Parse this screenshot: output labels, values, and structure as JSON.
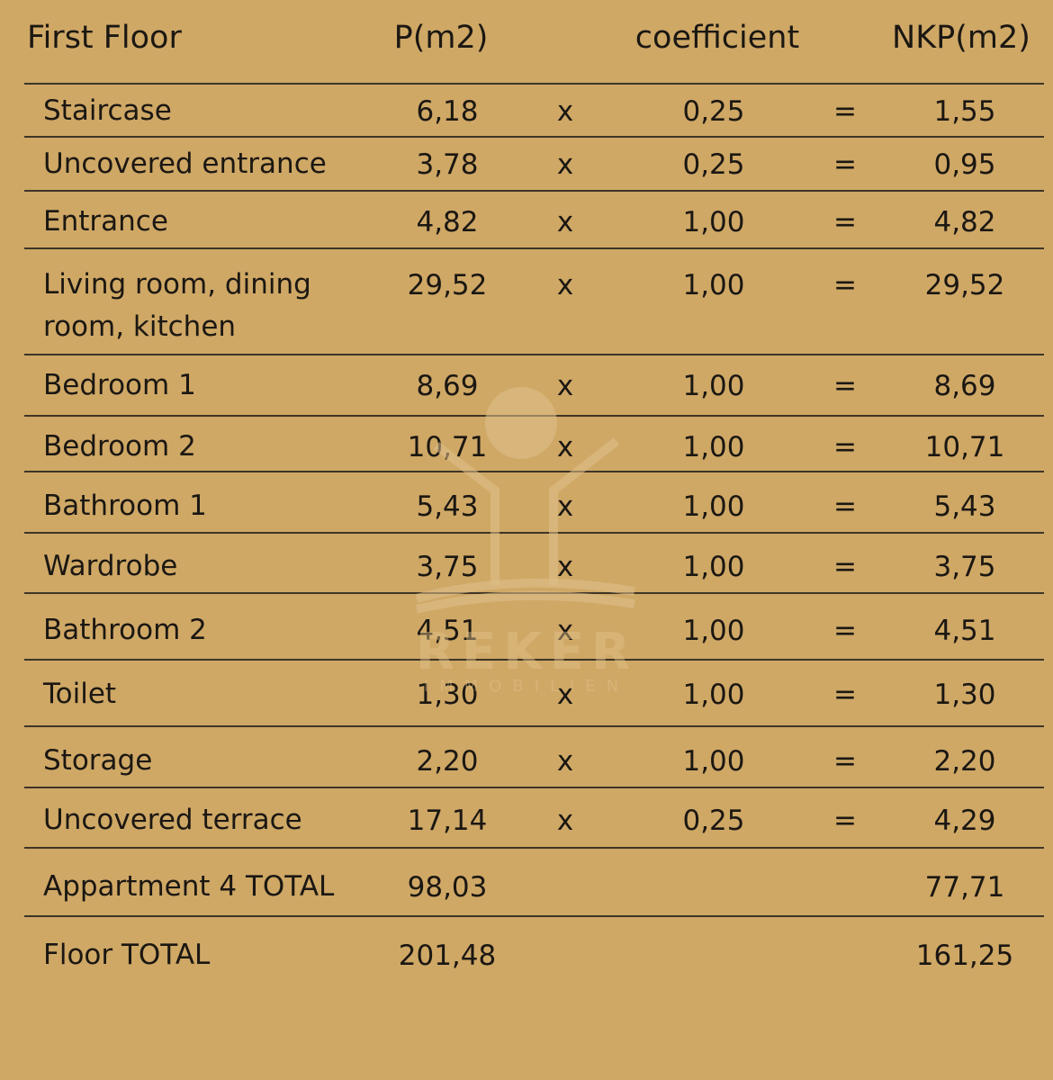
{
  "header": {
    "label": "First Floor",
    "p": "P(m2)",
    "coefficient": "coefficient",
    "nkp": "NKP(m2)"
  },
  "operators": {
    "times": "x",
    "equals": "="
  },
  "rows": [
    {
      "label": "Staircase",
      "p": "6,18",
      "coef": "0,25",
      "nkp": "1,55"
    },
    {
      "label": "Uncovered entrance",
      "p": "3,78",
      "coef": "0,25",
      "nkp": "0,95"
    },
    {
      "label": "Entrance",
      "p": "4,82",
      "coef": "1,00",
      "nkp": "4,82"
    },
    {
      "label": "Living room, dining room, kitchen",
      "p": "29,52",
      "coef": "1,00",
      "nkp": "29,52"
    },
    {
      "label": "Bedroom 1",
      "p": "8,69",
      "coef": "1,00",
      "nkp": "8,69"
    },
    {
      "label": "Bedroom 2",
      "p": "10,71",
      "coef": "1,00",
      "nkp": "10,71"
    },
    {
      "label": "Bathroom 1",
      "p": "5,43",
      "coef": "1,00",
      "nkp": "5,43"
    },
    {
      "label": "Wardrobe",
      "p": "3,75",
      "coef": "1,00",
      "nkp": "3,75"
    },
    {
      "label": "Bathroom 2",
      "p": "4,51",
      "coef": "1,00",
      "nkp": "4,51"
    },
    {
      "label": "Toilet",
      "p": "1,30",
      "coef": "1,00",
      "nkp": "1,30"
    },
    {
      "label": "Storage",
      "p": "2,20",
      "coef": "1,00",
      "nkp": "2,20"
    },
    {
      "label": "Uncovered terrace",
      "p": "17,14",
      "coef": "0,25",
      "nkp": "4,29"
    }
  ],
  "totals": [
    {
      "label": "Appartment 4 TOTAL",
      "p": "98,03",
      "nkp": "77,71"
    },
    {
      "label": "Floor TOTAL",
      "p": "201,48",
      "nkp": "161,25"
    }
  ],
  "watermark": {
    "name": "REKER",
    "sub": "IMMOBILIEN"
  },
  "colors": {
    "background": "#cfa866",
    "rule": "#3e3526",
    "text": "#1b1712"
  }
}
